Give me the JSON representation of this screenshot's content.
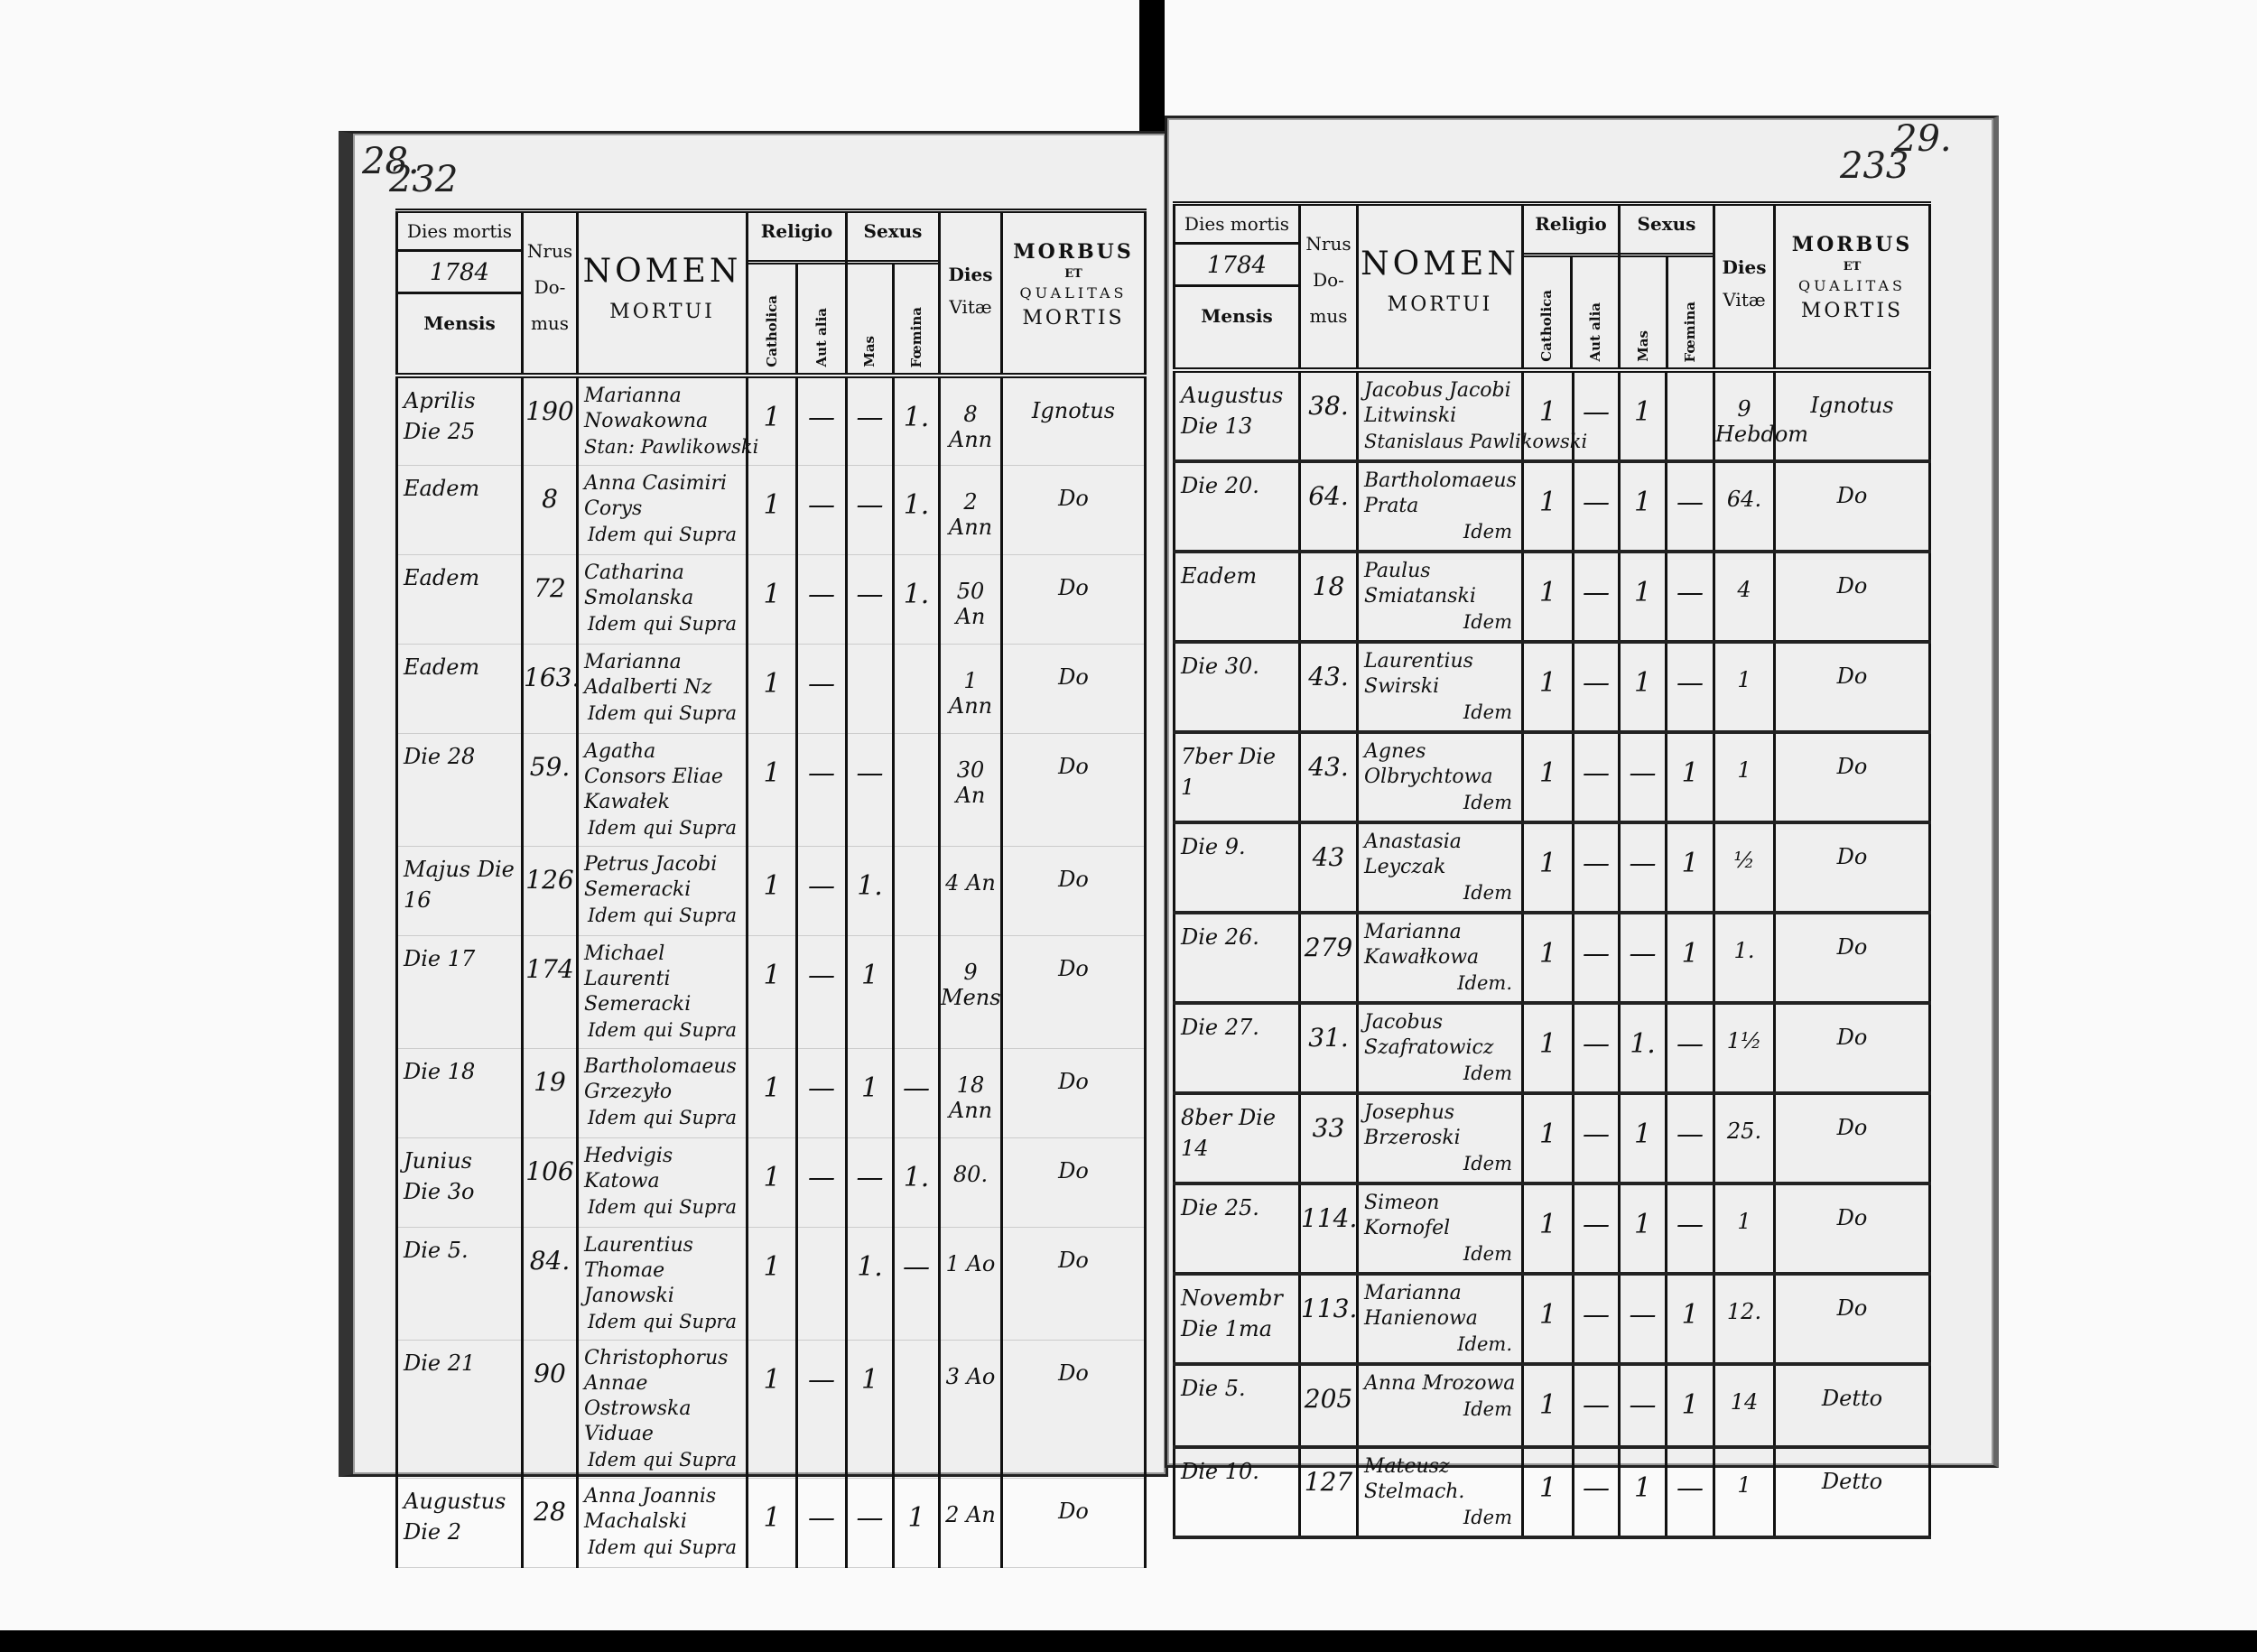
{
  "header": {
    "dies_mortis": "Dies mortis",
    "year_left": "1784",
    "year_right": "1784",
    "mensis": "Mensis",
    "nrus": "Nrus",
    "do": "Do-",
    "mus": "mus",
    "nomen": "NOMEN",
    "mortui": "MORTUI",
    "religio": "Religio",
    "sexus": "Sexus",
    "catholica": "Catholica",
    "aut_alia": "Aut alia",
    "mas": "Mas",
    "foemina": "Fœmina",
    "dies": "Dies",
    "vitae": "Vitæ",
    "morbus": "MORBUS",
    "et": "ET",
    "qualitas": "QUALITAS",
    "mortis": "MORTIS"
  },
  "left_page": {
    "folio_old": "28.",
    "folio_new": "232",
    "rows": [
      {
        "date": "Aprilis Die 25",
        "dom": "190",
        "name": "Marianna Nowakowna",
        "remark": "Stan: Pawlikowski",
        "cath": "1",
        "alia": "—",
        "mas": "—",
        "foem": "1.",
        "age": "8 Ann",
        "morbus": "Ignotus"
      },
      {
        "date": "Eadem",
        "dom": "8",
        "name": "Anna Casimiri Corys",
        "remark": "Idem qui Supra",
        "cath": "1",
        "alia": "—",
        "mas": "—",
        "foem": "1.",
        "age": "2 Ann",
        "morbus": "Do"
      },
      {
        "date": "Eadem",
        "dom": "72",
        "name": "Catharina Smolanska",
        "remark": "Idem qui Supra",
        "cath": "1",
        "alia": "—",
        "mas": "—",
        "foem": "1.",
        "age": "50 An",
        "morbus": "Do"
      },
      {
        "date": "Eadem",
        "dom": "163.",
        "name": "Marianna Adalberti Nz",
        "remark": "Idem qui Supra",
        "cath": "1",
        "alia": "—",
        "mas": "",
        "foem": "",
        "age": "1 Ann",
        "morbus": "Do"
      },
      {
        "date": "Die 28",
        "dom": "59.",
        "name": "Agatha Consors Eliae Kawałek",
        "remark": "Idem qui Supra",
        "cath": "1",
        "alia": "—",
        "mas": "—",
        "foem": "",
        "age": "30 An",
        "morbus": "Do"
      },
      {
        "date": "Majus Die 16",
        "dom": "126",
        "name": "Petrus Jacobi Semeracki",
        "remark": "Idem qui Supra",
        "cath": "1",
        "alia": "—",
        "mas": "1.",
        "foem": "",
        "age": "4 An",
        "morbus": "Do"
      },
      {
        "date": "Die 17",
        "dom": "174",
        "name": "Michael Laurenti Semeracki",
        "remark": "Idem qui Supra",
        "cath": "1",
        "alia": "—",
        "mas": "1",
        "foem": "",
        "age": "9 Mens",
        "morbus": "Do"
      },
      {
        "date": "Die 18",
        "dom": "19",
        "name": "Bartholomaeus Grzezyło",
        "remark": "Idem qui Supra",
        "cath": "1",
        "alia": "—",
        "mas": "1",
        "foem": "—",
        "age": "18 Ann",
        "morbus": "Do"
      },
      {
        "date": "Junius Die 3o",
        "dom": "106",
        "name": "Hedvigis Katowa",
        "remark": "Idem qui Supra",
        "cath": "1",
        "alia": "—",
        "mas": "—",
        "foem": "1.",
        "age": "80.",
        "morbus": "Do"
      },
      {
        "date": "Die 5.",
        "dom": "84.",
        "name": "Laurentius Thomae Janowski",
        "remark": "Idem qui Supra",
        "cath": "1",
        "alia": "",
        "mas": "1.",
        "foem": "—",
        "age": "1 Ao",
        "morbus": "Do"
      },
      {
        "date": "Die 21",
        "dom": "90",
        "name": "Christophorus Annae Ostrowska Viduae",
        "remark": "Idem qui Supra",
        "cath": "1",
        "alia": "—",
        "mas": "1",
        "foem": "",
        "age": "3 Ao",
        "morbus": "Do"
      },
      {
        "date": "Augustus Die 2",
        "dom": "28",
        "name": "Anna Joannis Machalski",
        "remark": "Idem qui Supra",
        "cath": "1",
        "alia": "—",
        "mas": "—",
        "foem": "1",
        "age": "2 An",
        "morbus": "Do"
      }
    ]
  },
  "right_page": {
    "folio_new": "233",
    "folio_old": "29.",
    "rows": [
      {
        "date": "Augustus Die 13",
        "dom": "38.",
        "name": "Jacobus Jacobi Litwinski",
        "remark": "Stanislaus Pawlikowski",
        "cath": "1",
        "alia": "—",
        "mas": "1",
        "foem": "",
        "age": "9 Hebdom",
        "morbus": "Ignotus"
      },
      {
        "date": "Die 20.",
        "dom": "64.",
        "name": "Bartholomaeus Prata",
        "remark": "Idem",
        "cath": "1",
        "alia": "—",
        "mas": "1",
        "foem": "—",
        "age": "64.",
        "morbus": "Do"
      },
      {
        "date": "Eadem",
        "dom": "18",
        "name": "Paulus Smiatanski",
        "remark": "Idem",
        "cath": "1",
        "alia": "—",
        "mas": "1",
        "foem": "—",
        "age": "4",
        "morbus": "Do"
      },
      {
        "date": "Die 30.",
        "dom": "43.",
        "name": "Laurentius Swirski",
        "remark": "Idem",
        "cath": "1",
        "alia": "—",
        "mas": "1",
        "foem": "—",
        "age": "1",
        "morbus": "Do"
      },
      {
        "date": "7ber Die 1",
        "dom": "43.",
        "name": "Agnes Olbrychtowa",
        "remark": "Idem",
        "cath": "1",
        "alia": "—",
        "mas": "—",
        "foem": "1",
        "age": "1",
        "morbus": "Do"
      },
      {
        "date": "Die 9.",
        "dom": "43",
        "name": "Anastasia Leyczak",
        "remark": "Idem",
        "cath": "1",
        "alia": "—",
        "mas": "—",
        "foem": "1",
        "age": "½",
        "morbus": "Do"
      },
      {
        "date": "Die 26.",
        "dom": "279",
        "name": "Marianna Kawałkowa",
        "remark": "Idem.",
        "cath": "1",
        "alia": "—",
        "mas": "—",
        "foem": "1",
        "age": "1.",
        "morbus": "Do"
      },
      {
        "date": "Die 27.",
        "dom": "31.",
        "name": "Jacobus Szafratowicz",
        "remark": "Idem",
        "cath": "1",
        "alia": "—",
        "mas": "1.",
        "foem": "—",
        "age": "1½",
        "morbus": "Do"
      },
      {
        "date": "8ber Die 14",
        "dom": "33",
        "name": "Josephus Brzeroski",
        "remark": "Idem",
        "cath": "1",
        "alia": "—",
        "mas": "1",
        "foem": "—",
        "age": "25.",
        "morbus": "Do"
      },
      {
        "date": "Die 25.",
        "dom": "114.",
        "name": "Simeon Kornofel",
        "remark": "Idem",
        "cath": "1",
        "alia": "—",
        "mas": "1",
        "foem": "—",
        "age": "1",
        "morbus": "Do"
      },
      {
        "date": "Novembr Die 1ma",
        "dom": "113.",
        "name": "Marianna Hanienowa",
        "remark": "Idem.",
        "cath": "1",
        "alia": "—",
        "mas": "—",
        "foem": "1",
        "age": "12.",
        "morbus": "Do"
      },
      {
        "date": "Die 5.",
        "dom": "205",
        "name": "Anna Mrozowa",
        "remark": "Idem",
        "cath": "1",
        "alia": "—",
        "mas": "—",
        "foem": "1",
        "age": "14",
        "morbus": "Detto"
      },
      {
        "date": "Die 10.",
        "dom": "127",
        "name": "Mateusz Stelmach.",
        "remark": "Idem",
        "cath": "1",
        "alia": "—",
        "mas": "1",
        "foem": "—",
        "age": "1",
        "morbus": "Detto"
      }
    ]
  }
}
